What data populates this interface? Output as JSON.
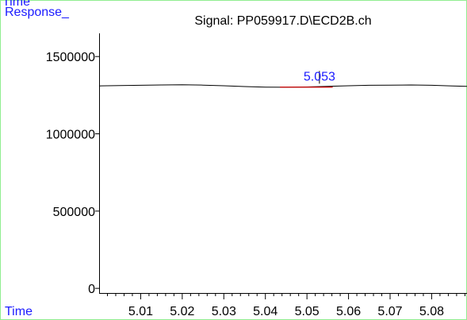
{
  "corner": {
    "top_partial": "Time",
    "response_label": "Response_",
    "time_label": "Time"
  },
  "chart_data": {
    "type": "line",
    "title": "Signal: PP059917.D\\ECD2B.ch",
    "xlabel": "Time",
    "ylabel": "Response_",
    "xlim": [
      5.0,
      5.0885
    ],
    "ylim": [
      -30000,
      1650000
    ],
    "x_ticks": [
      "5.01",
      "5.02",
      "5.03",
      "5.04",
      "5.05",
      "5.06",
      "5.07",
      "5.08"
    ],
    "x_tick_values": [
      5.01,
      5.02,
      5.03,
      5.04,
      5.05,
      5.06,
      5.07,
      5.08
    ],
    "x_minor_step": 0.002,
    "y_ticks": [
      "0",
      "500000",
      "1000000",
      "1500000"
    ],
    "y_tick_values": [
      0,
      500000,
      1000000,
      1500000
    ],
    "grid": false,
    "series": [
      {
        "color": "#000000",
        "x": [
          5.0,
          5.005,
          5.01,
          5.015,
          5.02,
          5.025,
          5.03,
          5.035,
          5.04,
          5.045,
          5.05,
          5.055,
          5.06,
          5.065,
          5.07,
          5.075,
          5.08,
          5.085,
          5.0885
        ],
        "y": [
          1310000,
          1312000,
          1314000,
          1316000,
          1317000,
          1315000,
          1311000,
          1306000,
          1302000,
          1301000,
          1303000,
          1307000,
          1311000,
          1314000,
          1315000,
          1316000,
          1314000,
          1310000,
          1307000
        ]
      }
    ],
    "baseline": {
      "color": "#cc0000",
      "x_start": 5.0435,
      "x_end": 5.0562,
      "y": 1302000
    },
    "peak": {
      "label": "5.053",
      "x": 5.053,
      "y": 1304000,
      "label_color": "#1a1aff"
    },
    "frame_color": "#90ee90"
  }
}
